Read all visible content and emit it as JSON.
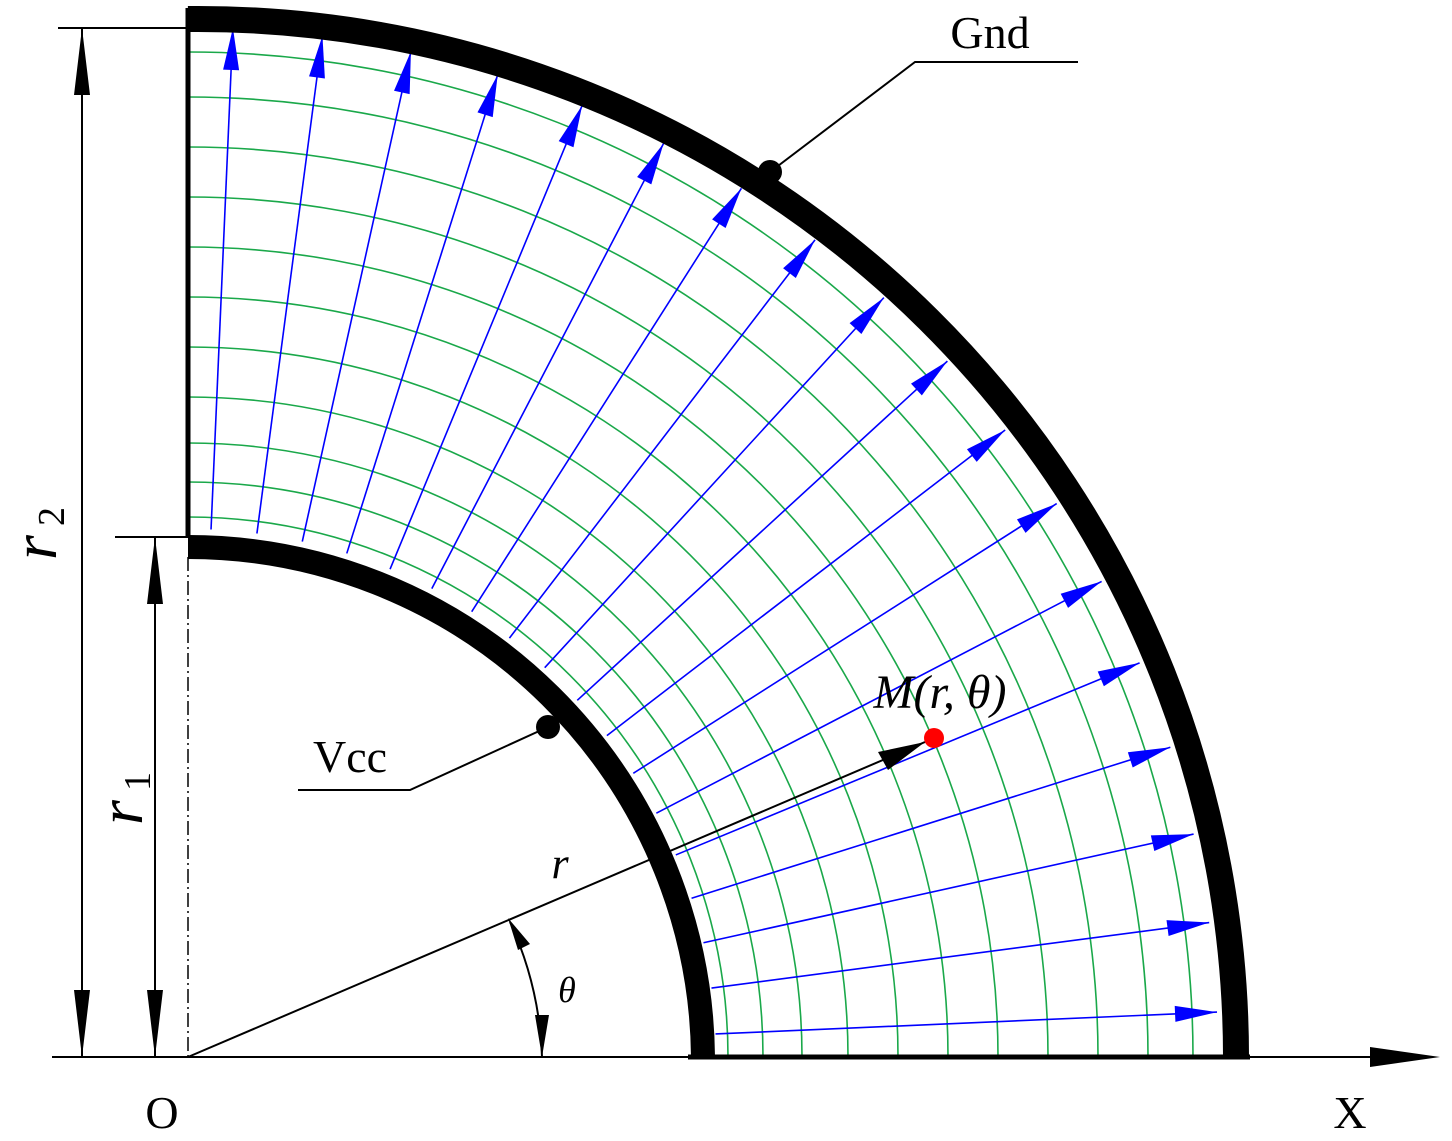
{
  "labels": {
    "gnd": "Gnd",
    "vcc": "Vcc",
    "point": "M(r, θ)",
    "radius": "r",
    "angle": "θ",
    "origin": "O",
    "x_axis": "X"
  },
  "dimensions": {
    "r2": {
      "symbol": "r",
      "subscript": "2"
    },
    "r1": {
      "symbol": "r",
      "subscript": "1"
    }
  }
}
